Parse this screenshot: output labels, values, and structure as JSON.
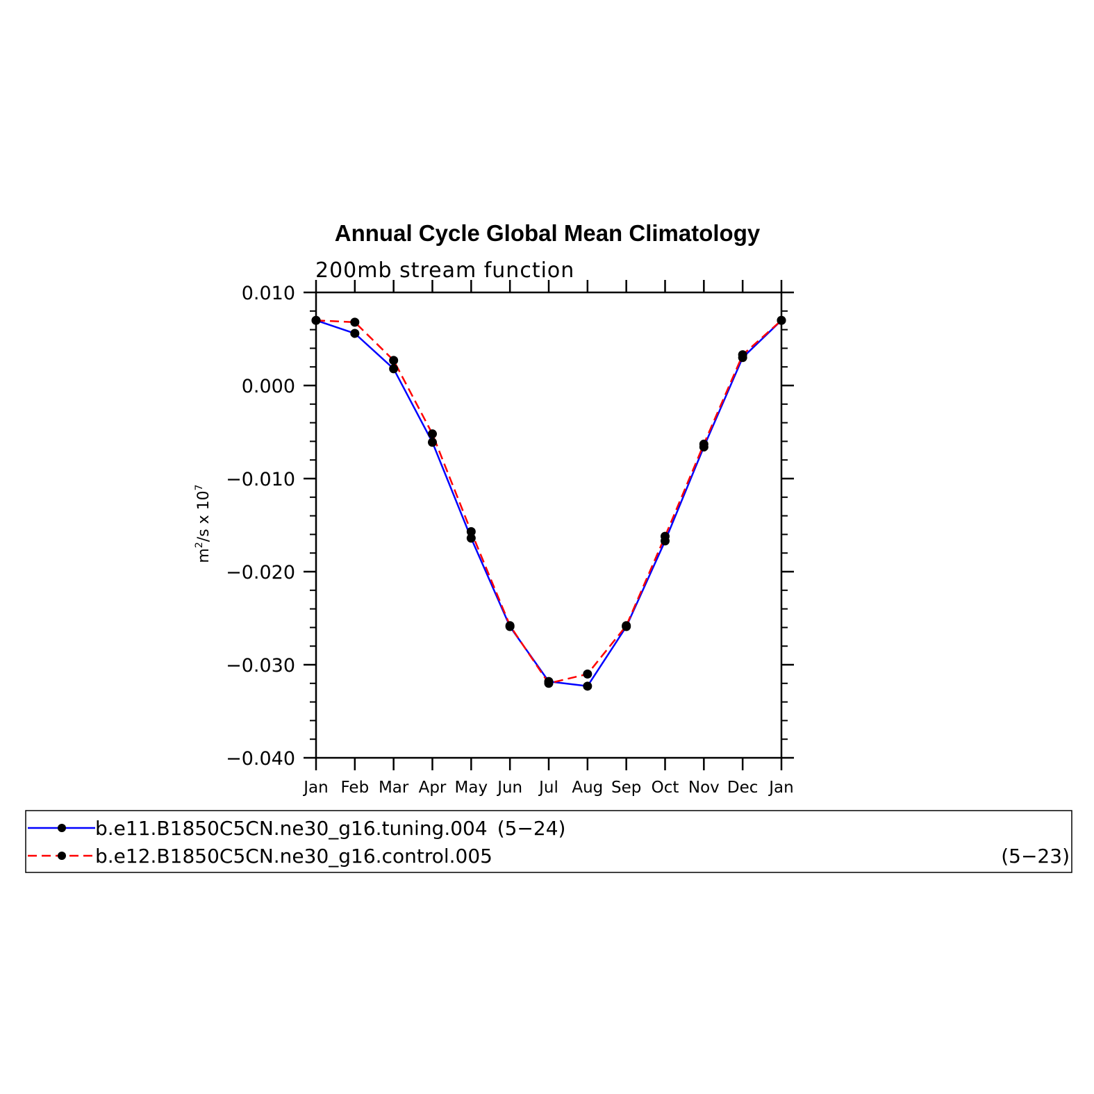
{
  "chart_data": {
    "type": "line",
    "title": "Annual Cycle Global Mean Climatology",
    "subtitle": "200mb stream function",
    "ylabel": "m²/s x 10⁷",
    "ylabel_parts": {
      "base": "m",
      "sup1": "2",
      "mid": "/s x 10",
      "sup2": "7"
    },
    "xlabel": "",
    "categories": [
      "Jan",
      "Feb",
      "Mar",
      "Apr",
      "May",
      "Jun",
      "Jul",
      "Aug",
      "Sep",
      "Oct",
      "Nov",
      "Dec",
      "Jan"
    ],
    "ylim": [
      -0.04,
      0.01
    ],
    "yticks": [
      0.01,
      0.0,
      -0.01,
      -0.02,
      -0.03,
      -0.04
    ],
    "ytick_labels": [
      "0.010",
      "0.000",
      "−0.010",
      "−0.020",
      "−0.030",
      "−0.040"
    ],
    "grid": false,
    "series": [
      {
        "name": "b.e11.B1850C5CN.ne30_g16.tuning.004",
        "years": "(5−24)",
        "color": "#0000ff",
        "dash": "solid",
        "values": [
          0.007,
          0.0056,
          0.0018,
          -0.0061,
          -0.0164,
          -0.0259,
          -0.0318,
          -0.0323,
          -0.0259,
          -0.0167,
          -0.0066,
          0.003,
          0.007
        ]
      },
      {
        "name": "b.e12.B1850C5CN.ne30_g16.control.005",
        "years": "(5−23)",
        "color": "#ff0000",
        "dash": "dashed",
        "values": [
          0.007,
          0.0068,
          0.0027,
          -0.0052,
          -0.0157,
          -0.0258,
          -0.032,
          -0.031,
          -0.0258,
          -0.0162,
          -0.0063,
          0.0033,
          0.007
        ]
      }
    ],
    "legend": "bottom"
  }
}
